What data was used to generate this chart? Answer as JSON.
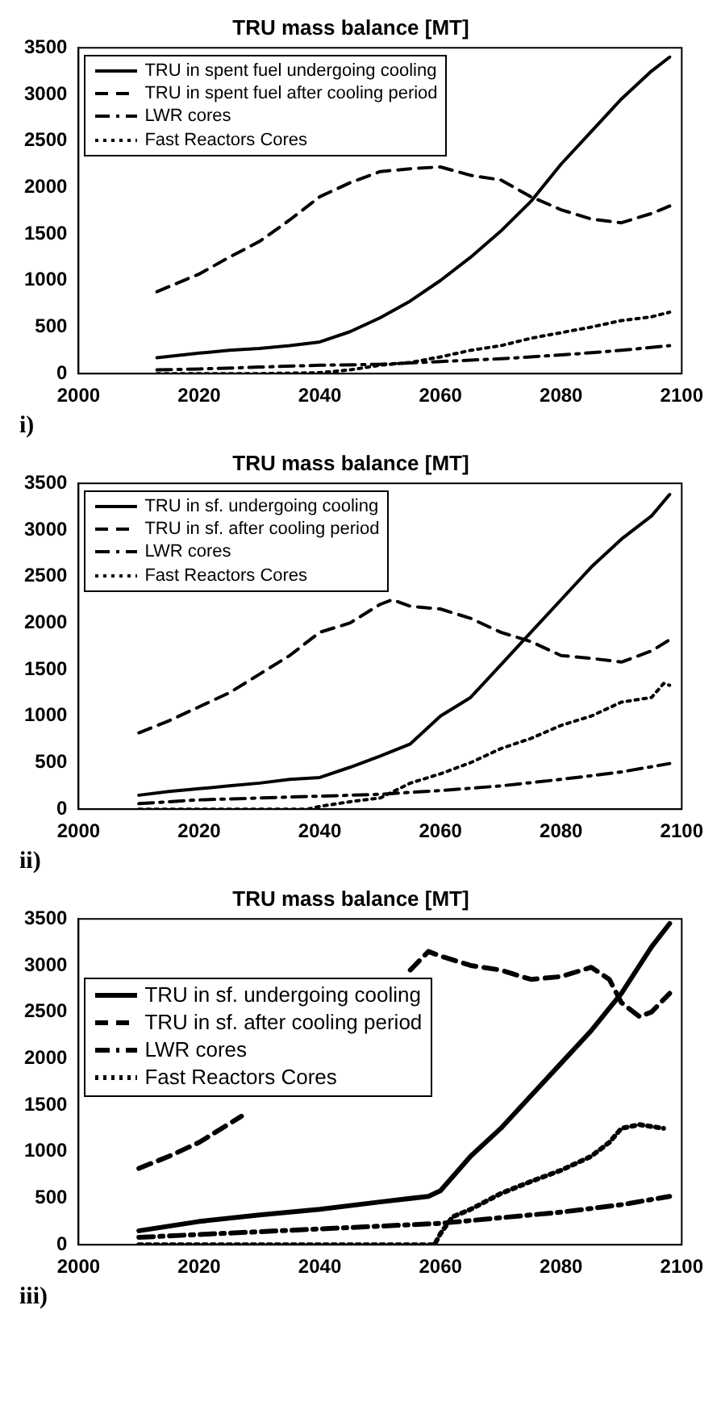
{
  "chart_data": [
    {
      "type": "line",
      "title": "TRU mass balance [MT]",
      "annotations": [
        "i)"
      ],
      "xlim": [
        2000,
        2100
      ],
      "xticks": [
        2000,
        2020,
        2040,
        2060,
        2080,
        2100
      ],
      "ylim": [
        0,
        3500
      ],
      "yticks": [
        0,
        500,
        1000,
        1500,
        2000,
        2500,
        3000,
        3500
      ],
      "legend": "top left",
      "series": [
        {
          "name": "TRU in spent fuel undergoing cooling",
          "color": "#000000",
          "line_style": "solid",
          "x": [
            2013,
            2020,
            2025,
            2030,
            2035,
            2040,
            2045,
            2050,
            2055,
            2060,
            2065,
            2070,
            2075,
            2080,
            2085,
            2090,
            2095,
            2098
          ],
          "values": [
            170,
            220,
            250,
            270,
            300,
            340,
            450,
            600,
            780,
            1000,
            1250,
            1530,
            1850,
            2250,
            2600,
            2950,
            3250,
            3400
          ]
        },
        {
          "name": "TRU in spent fuel after cooling period",
          "color": "#000000",
          "line_style": "dashed",
          "x": [
            2013,
            2020,
            2025,
            2030,
            2035,
            2040,
            2045,
            2050,
            2055,
            2060,
            2065,
            2070,
            2075,
            2080,
            2085,
            2090,
            2095,
            2098
          ],
          "values": [
            880,
            1070,
            1250,
            1420,
            1650,
            1900,
            2050,
            2170,
            2200,
            2220,
            2130,
            2080,
            1900,
            1760,
            1660,
            1620,
            1720,
            1800
          ]
        },
        {
          "name": "LWR cores",
          "color": "#000000",
          "line_style": "dashdot",
          "x": [
            2013,
            2020,
            2030,
            2040,
            2050,
            2060,
            2070,
            2080,
            2090,
            2098
          ],
          "values": [
            40,
            50,
            70,
            90,
            100,
            130,
            160,
            200,
            250,
            300
          ]
        },
        {
          "name": "Fast Reactors Cores",
          "color": "#000000",
          "line_style": "dotted",
          "x": [
            2013,
            2030,
            2040,
            2045,
            2050,
            2055,
            2060,
            2065,
            2070,
            2075,
            2080,
            2085,
            2090,
            2095,
            2098
          ],
          "values": [
            0,
            0,
            10,
            40,
            90,
            120,
            180,
            250,
            300,
            380,
            440,
            500,
            570,
            610,
            660
          ]
        }
      ]
    },
    {
      "type": "line",
      "title": "TRU mass balance [MT]",
      "annotations": [
        "ii)"
      ],
      "xlim": [
        2000,
        2100
      ],
      "xticks": [
        2000,
        2020,
        2040,
        2060,
        2080,
        2100
      ],
      "ylim": [
        0,
        3500
      ],
      "yticks": [
        0,
        500,
        1000,
        1500,
        2000,
        2500,
        3000,
        3500
      ],
      "legend": "top left",
      "series": [
        {
          "name": "TRU in sf. undergoing cooling",
          "color": "#000000",
          "line_style": "solid",
          "x": [
            2010,
            2015,
            2020,
            2025,
            2030,
            2035,
            2040,
            2045,
            2050,
            2055,
            2060,
            2065,
            2070,
            2075,
            2080,
            2085,
            2090,
            2095,
            2098
          ],
          "values": [
            150,
            190,
            220,
            250,
            280,
            320,
            340,
            450,
            570,
            700,
            1000,
            1200,
            1550,
            1900,
            2250,
            2600,
            2900,
            3150,
            3380
          ]
        },
        {
          "name": "TRU in sf. after cooling period",
          "color": "#000000",
          "line_style": "dashed",
          "x": [
            2010,
            2015,
            2020,
            2025,
            2030,
            2035,
            2040,
            2045,
            2050,
            2052,
            2055,
            2060,
            2065,
            2070,
            2075,
            2080,
            2085,
            2090,
            2095,
            2098
          ],
          "values": [
            820,
            950,
            1100,
            1250,
            1450,
            1650,
            1900,
            2000,
            2200,
            2250,
            2180,
            2150,
            2050,
            1900,
            1800,
            1650,
            1620,
            1580,
            1700,
            1820
          ]
        },
        {
          "name": "LWR cores",
          "color": "#000000",
          "line_style": "dashdot",
          "x": [
            2010,
            2020,
            2030,
            2040,
            2050,
            2060,
            2070,
            2080,
            2090,
            2098
          ],
          "values": [
            60,
            100,
            120,
            140,
            160,
            200,
            250,
            320,
            400,
            490
          ]
        },
        {
          "name": "Fast Reactors Cores",
          "color": "#000000",
          "line_style": "dotted",
          "x": [
            2010,
            2038,
            2040,
            2045,
            2050,
            2055,
            2060,
            2065,
            2070,
            2075,
            2080,
            2085,
            2090,
            2095,
            2097,
            2098
          ],
          "values": [
            0,
            0,
            30,
            80,
            120,
            280,
            380,
            500,
            650,
            760,
            900,
            1000,
            1150,
            1200,
            1350,
            1330
          ]
        }
      ]
    },
    {
      "type": "line",
      "title": "TRU mass balance [MT]",
      "annotations": [
        "iii)"
      ],
      "xlim": [
        2000,
        2100
      ],
      "xticks": [
        2000,
        2020,
        2040,
        2060,
        2080,
        2100
      ],
      "ylim": [
        0,
        3500
      ],
      "yticks": [
        0,
        500,
        1000,
        1500,
        2000,
        2500,
        3000,
        3500
      ],
      "legend": "left",
      "series": [
        {
          "name": "TRU in sf. undergoing cooling",
          "color": "#000000",
          "line_style": "solid",
          "x": [
            2010,
            2020,
            2030,
            2040,
            2050,
            2058,
            2060,
            2065,
            2070,
            2075,
            2080,
            2085,
            2090,
            2095,
            2098
          ],
          "values": [
            150,
            250,
            320,
            380,
            460,
            520,
            580,
            950,
            1250,
            1600,
            1950,
            2300,
            2700,
            3200,
            3450
          ]
        },
        {
          "name": "TRU in sf. after cooling period",
          "color": "#000000",
          "line_style": "dashed",
          "x": [
            2010,
            2015,
            2020,
            2025,
            2027,
            2040,
            2055,
            2058,
            2060,
            2065,
            2070,
            2075,
            2080,
            2085,
            2088,
            2090,
            2093,
            2095,
            2098
          ],
          "values": [
            820,
            950,
            1100,
            1300,
            1380,
            null,
            2950,
            3150,
            3100,
            3000,
            2950,
            2850,
            2880,
            2980,
            2850,
            2600,
            2450,
            2500,
            2700
          ]
        },
        {
          "name": "LWR cores",
          "color": "#000000",
          "line_style": "dashdot",
          "x": [
            2010,
            2020,
            2030,
            2040,
            2050,
            2060,
            2070,
            2080,
            2090,
            2098
          ],
          "values": [
            80,
            110,
            140,
            170,
            200,
            230,
            290,
            350,
            430,
            520
          ]
        },
        {
          "name": "Fast Reactors Cores",
          "color": "#000000",
          "line_style": "dotted",
          "x": [
            2010,
            2059,
            2060,
            2062,
            2065,
            2070,
            2075,
            2080,
            2085,
            2088,
            2090,
            2093,
            2097
          ],
          "values": [
            0,
            0,
            120,
            300,
            380,
            550,
            680,
            800,
            950,
            1100,
            1250,
            1290,
            1250
          ]
        }
      ]
    }
  ]
}
